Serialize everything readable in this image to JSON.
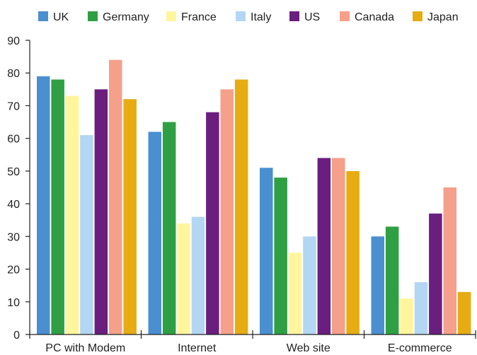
{
  "chart_data": {
    "type": "bar",
    "title": "",
    "xlabel": "",
    "ylabel": "",
    "categories": [
      "PC with Modem",
      "Internet",
      "Web site",
      "E-commerce"
    ],
    "ylim": [
      0,
      90
    ],
    "yticks": [
      0,
      10,
      20,
      30,
      40,
      50,
      60,
      70,
      80,
      90
    ],
    "grid": false,
    "legend_position": "top",
    "series": [
      {
        "name": "UK",
        "color": "#4a8fd0",
        "values": [
          79,
          62,
          51,
          30
        ]
      },
      {
        "name": "Germany",
        "color": "#2ea043",
        "values": [
          78,
          65,
          48,
          33
        ]
      },
      {
        "name": "France",
        "color": "#fff59d",
        "values": [
          73,
          34,
          25,
          11
        ]
      },
      {
        "name": "Italy",
        "color": "#b3d6f2",
        "values": [
          61,
          36,
          30,
          16
        ]
      },
      {
        "name": "US",
        "color": "#6a1f7f",
        "values": [
          75,
          68,
          54,
          37
        ]
      },
      {
        "name": "Canada",
        "color": "#f5a08a",
        "values": [
          84,
          75,
          54,
          45
        ]
      },
      {
        "name": "Japan",
        "color": "#e6ac12",
        "values": [
          72,
          78,
          50,
          13
        ]
      }
    ]
  }
}
